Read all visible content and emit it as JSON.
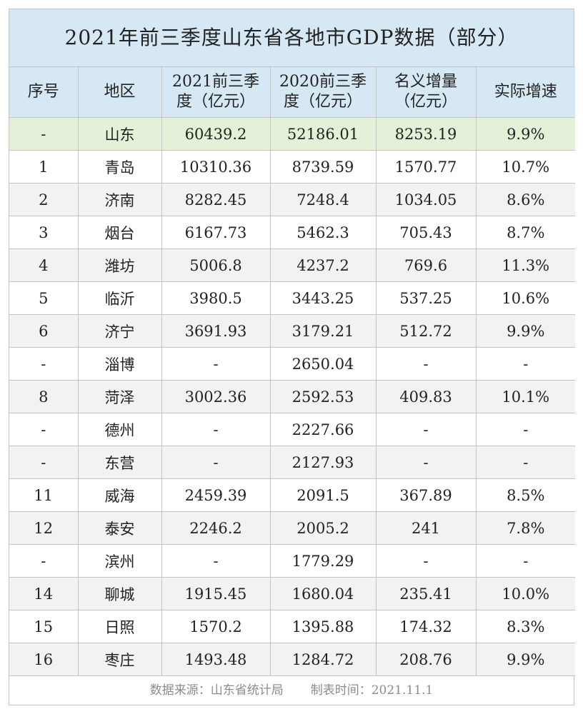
{
  "title": "2021年前三季度山东省各地市GDP数据（部分）",
  "columns": [
    {
      "line1": "序号",
      "line2": ""
    },
    {
      "line1": "地区",
      "line2": ""
    },
    {
      "line1": "2021前三季",
      "line2": "度（亿元）"
    },
    {
      "line1": "2020前三季",
      "line2": "度（亿元）"
    },
    {
      "line1": "名义增量",
      "line2": "（亿元）"
    },
    {
      "line1": "实际增速",
      "line2": ""
    }
  ],
  "rows": [
    [
      "-",
      "山东",
      "60439.2",
      "52186.01",
      "8253.19",
      "9.9%"
    ],
    [
      "1",
      "青岛",
      "10310.36",
      "8739.59",
      "1570.77",
      "10.7%"
    ],
    [
      "2",
      "济南",
      "8282.45",
      "7248.4",
      "1034.05",
      "8.6%"
    ],
    [
      "3",
      "烟台",
      "6167.73",
      "5462.3",
      "705.43",
      "8.7%"
    ],
    [
      "4",
      "潍坊",
      "5006.8",
      "4237.2",
      "769.6",
      "11.3%"
    ],
    [
      "5",
      "临沂",
      "3980.5",
      "3443.25",
      "537.25",
      "10.6%"
    ],
    [
      "6",
      "济宁",
      "3691.93",
      "3179.21",
      "512.72",
      "9.9%"
    ],
    [
      "-",
      "淄博",
      "-",
      "2650.04",
      "-",
      "-"
    ],
    [
      "8",
      "菏泽",
      "3002.36",
      "2592.53",
      "409.83",
      "10.1%"
    ],
    [
      "-",
      "德州",
      "-",
      "2227.66",
      "-",
      "-"
    ],
    [
      "-",
      "东营",
      "-",
      "2127.93",
      "-",
      "-"
    ],
    [
      "11",
      "威海",
      "2459.39",
      "2091.5",
      "367.89",
      "8.5%"
    ],
    [
      "12",
      "泰安",
      "2246.2",
      "2005.2",
      "241",
      "7.8%"
    ],
    [
      "-",
      "滨州",
      "-",
      "1779.29",
      "-",
      "-"
    ],
    [
      "14",
      "聊城",
      "1915.45",
      "1680.04",
      "235.41",
      "10.0%"
    ],
    [
      "15",
      "日照",
      "1570.2",
      "1395.88",
      "174.32",
      "8.3%"
    ],
    [
      "16",
      "枣庄",
      "1493.48",
      "1284.72",
      "208.76",
      "9.9%"
    ]
  ],
  "footer": {
    "source": "数据来源：山东省统计局",
    "date": "制表时间：2021.11.1"
  },
  "colors": {
    "header_bg": "#d7e8f5",
    "total_row_bg": "#e2f1d7",
    "alt_row_bg": "#f2f2f2",
    "border": "#c4c4c4"
  }
}
